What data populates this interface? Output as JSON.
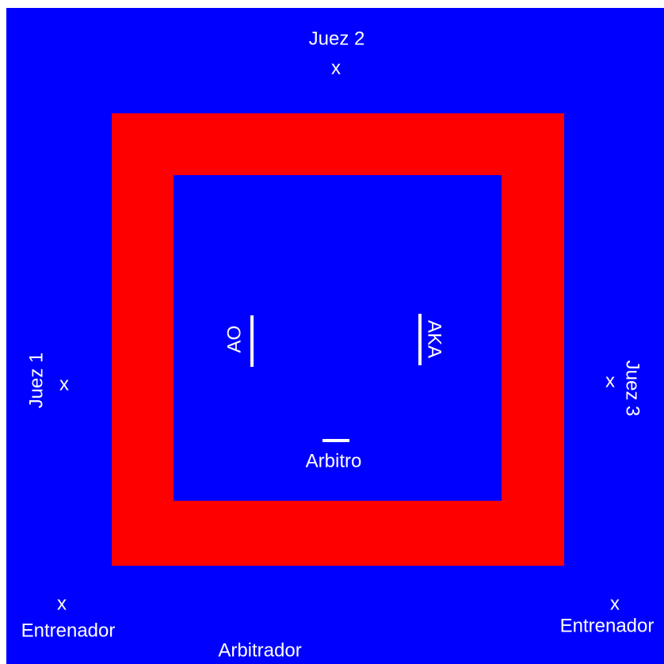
{
  "area": {
    "judges": [
      {
        "label": "Juez 1",
        "marker": "x"
      },
      {
        "label": "Juez 2",
        "marker": "x"
      },
      {
        "label": "Juez 3",
        "marker": "x"
      }
    ],
    "competitors": [
      {
        "label": "AO"
      },
      {
        "label": "AKA"
      }
    ],
    "referee": {
      "label": "Arbitro"
    },
    "coaches": [
      {
        "label": "Entrenador",
        "marker": "x"
      },
      {
        "label": "Entrenador",
        "marker": "x"
      }
    ],
    "arbitrator": {
      "label": "Arbitrador"
    }
  }
}
